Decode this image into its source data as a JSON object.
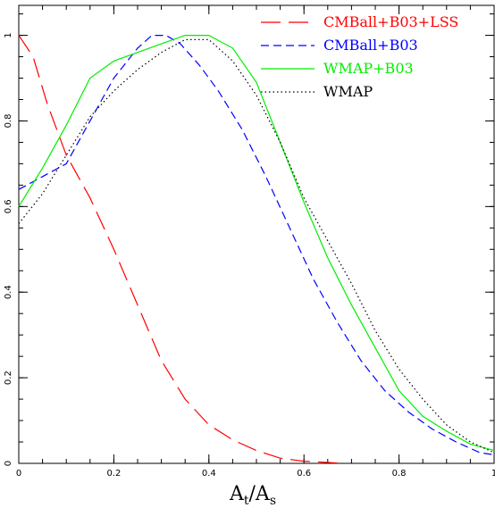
{
  "chart_data": {
    "type": "line",
    "title": "",
    "xlabel": "",
    "ylabel": "",
    "xlim": [
      0,
      1
    ],
    "ylim": [
      0,
      1.07
    ],
    "x_ticks": [
      0,
      0.2,
      0.4,
      0.6,
      0.8,
      1
    ],
    "x_tick_labels": [
      "0",
      "0.2",
      "0.4",
      "0.6",
      "0.8",
      "1"
    ],
    "y_ticks": [
      0,
      0.2,
      0.4,
      0.6,
      0.8,
      1
    ],
    "y_tick_labels": [
      "0",
      "0.2",
      "0.4",
      "0.6",
      "0.8",
      "1"
    ],
    "grid": false,
    "legend_position": "top-right",
    "x_axis_title": {
      "main": "A",
      "sub1": "t",
      "slash": "/A",
      "sub2": "s"
    },
    "series": [
      {
        "name": "CMBall+B03+LSS",
        "color": "#ff0000",
        "dash": "long-dash",
        "x": [
          0,
          0.03,
          0.06,
          0.1,
          0.15,
          0.2,
          0.25,
          0.3,
          0.35,
          0.4,
          0.45,
          0.5,
          0.55,
          0.6,
          0.65,
          0.68
        ],
        "y": [
          1,
          0.95,
          0.84,
          0.72,
          0.62,
          0.5,
          0.37,
          0.24,
          0.15,
          0.09,
          0.055,
          0.03,
          0.012,
          0.005,
          0.002,
          0.0
        ]
      },
      {
        "name": "CMBall+B03",
        "color": "#0000ff",
        "dash": "short-dash",
        "x": [
          0,
          0.05,
          0.1,
          0.15,
          0.2,
          0.25,
          0.28,
          0.31,
          0.34,
          0.38,
          0.42,
          0.47,
          0.52,
          0.57,
          0.62,
          0.67,
          0.72,
          0.77,
          0.82,
          0.87,
          0.92,
          0.97,
          1.0
        ],
        "y": [
          0.64,
          0.67,
          0.7,
          0.8,
          0.9,
          0.97,
          1.0,
          1.0,
          0.98,
          0.93,
          0.87,
          0.78,
          0.67,
          0.55,
          0.43,
          0.33,
          0.24,
          0.17,
          0.12,
          0.08,
          0.05,
          0.025,
          0.02
        ]
      },
      {
        "name": "WMAP+B03",
        "color": "#00ee00",
        "dash": "solid",
        "x": [
          0,
          0.05,
          0.1,
          0.15,
          0.2,
          0.25,
          0.3,
          0.35,
          0.4,
          0.45,
          0.5,
          0.55,
          0.6,
          0.65,
          0.7,
          0.75,
          0.8,
          0.85,
          0.9,
          0.95,
          1.0
        ],
        "y": [
          0.6,
          0.69,
          0.79,
          0.9,
          0.94,
          0.96,
          0.98,
          1.0,
          1.0,
          0.97,
          0.89,
          0.75,
          0.61,
          0.48,
          0.37,
          0.27,
          0.17,
          0.11,
          0.075,
          0.045,
          0.03
        ]
      },
      {
        "name": "WMAP",
        "color": "#000000",
        "dash": "dotted",
        "x": [
          0,
          0.05,
          0.1,
          0.15,
          0.2,
          0.25,
          0.3,
          0.35,
          0.4,
          0.45,
          0.5,
          0.55,
          0.6,
          0.65,
          0.7,
          0.75,
          0.8,
          0.85,
          0.9,
          0.95,
          1.0
        ],
        "y": [
          0.56,
          0.63,
          0.72,
          0.81,
          0.87,
          0.92,
          0.96,
          0.99,
          0.99,
          0.94,
          0.86,
          0.75,
          0.62,
          0.52,
          0.42,
          0.31,
          0.22,
          0.15,
          0.09,
          0.05,
          0.025
        ]
      }
    ]
  }
}
